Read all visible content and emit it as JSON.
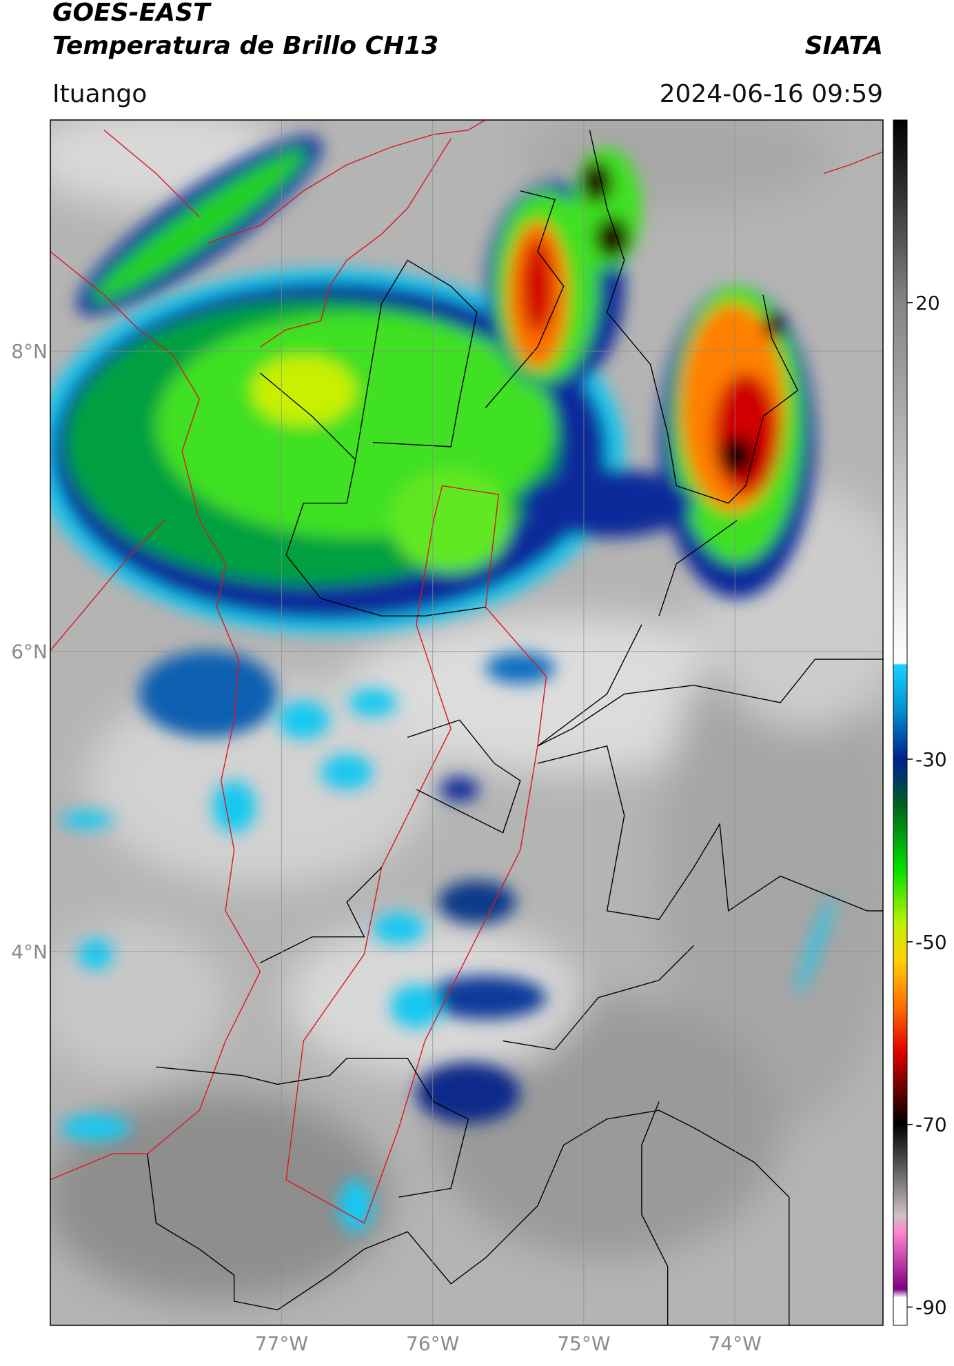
{
  "header": {
    "title": "GOES-EAST",
    "subtitle": "Temperatura de Brillo CH13",
    "source": "SIATA",
    "location": "Ituango",
    "datetime": "2024-06-16 09:59"
  },
  "chart_data": {
    "type": "map",
    "xlim": [
      -78.53,
      -73.02
    ],
    "ylim": [
      1.51,
      9.54
    ],
    "xticks": [
      {
        "value": -77,
        "label": "77°W"
      },
      {
        "value": -76,
        "label": "76°W"
      },
      {
        "value": -75,
        "label": "75°W"
      },
      {
        "value": -74,
        "label": "74°W"
      }
    ],
    "yticks": [
      {
        "value": 8,
        "label": "8°N"
      },
      {
        "value": 6,
        "label": "6°N"
      },
      {
        "value": 4,
        "label": "4°N"
      }
    ],
    "grid": true,
    "colorbar": {
      "lim": [
        -92,
        40
      ],
      "ticks": [
        20,
        -30,
        -50,
        -70,
        -90
      ]
    }
  }
}
